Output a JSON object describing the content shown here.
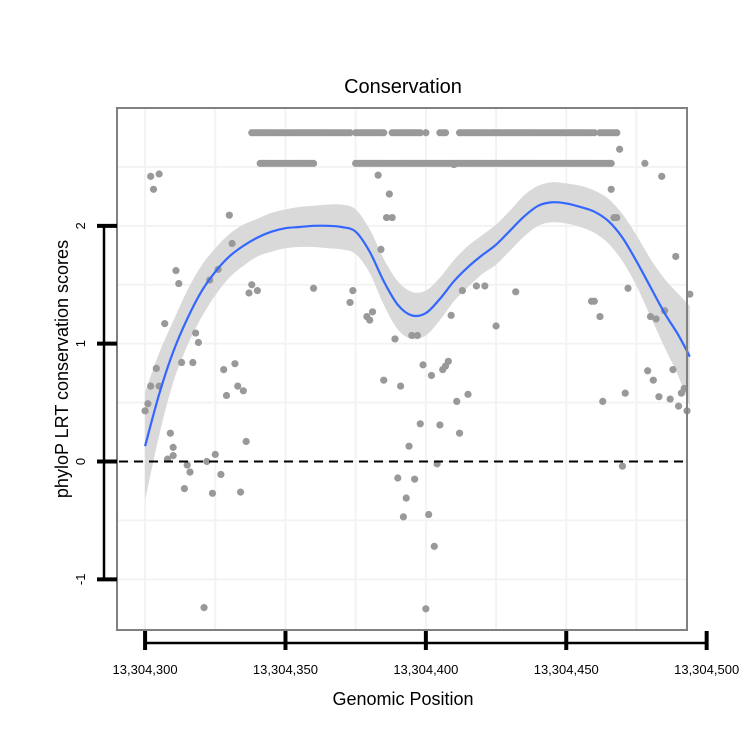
{
  "chart_data": {
    "type": "scatter",
    "title": "Conservation",
    "xlabel": "Genomic Position",
    "ylabel": "phyloP LRT conservation scores",
    "xlim": [
      13304290,
      13304493
    ],
    "ylim": [
      -1.43,
      3.0
    ],
    "x_ticks": [
      13304300,
      13304350,
      13304400,
      13304450,
      13304500
    ],
    "x_tick_labels": [
      "13,304,300",
      "13,304,350",
      "13,304,400",
      "13,304,450",
      "13,304,500"
    ],
    "y_ticks": [
      -1,
      0,
      1,
      2
    ],
    "y_tick_labels": [
      "-1",
      "0",
      "1",
      "2"
    ],
    "reference_line": {
      "y": 0,
      "style": "dashed"
    },
    "grid": true,
    "colors": {
      "points": "#999999",
      "smooth": "#3366FF",
      "ribbon": "#D9D9D9",
      "panel_border": "#808080",
      "grid": "#F3F3F3"
    },
    "points": [
      {
        "x": 13304302,
        "y": 2.42
      },
      {
        "x": 13304303,
        "y": 2.31
      },
      {
        "x": 13304305,
        "y": 2.44
      },
      {
        "x": 13304300,
        "y": 0.43
      },
      {
        "x": 13304301,
        "y": 0.49
      },
      {
        "x": 13304302,
        "y": 0.64
      },
      {
        "x": 13304304,
        "y": 0.79
      },
      {
        "x": 13304305,
        "y": 0.64
      },
      {
        "x": 13304307,
        "y": 1.17
      },
      {
        "x": 13304308,
        "y": 0.02
      },
      {
        "x": 13304309,
        "y": 0.24
      },
      {
        "x": 13304310,
        "y": 0.05
      },
      {
        "x": 13304310,
        "y": 0.12
      },
      {
        "x": 13304311,
        "y": 1.62
      },
      {
        "x": 13304312,
        "y": 1.51
      },
      {
        "x": 13304313,
        "y": 0.84
      },
      {
        "x": 13304314,
        "y": -0.23
      },
      {
        "x": 13304315,
        "y": -0.03
      },
      {
        "x": 13304316,
        "y": -0.09
      },
      {
        "x": 13304317,
        "y": 0.84
      },
      {
        "x": 13304318,
        "y": 1.09
      },
      {
        "x": 13304319,
        "y": 1.01
      },
      {
        "x": 13304321,
        "y": -1.24
      },
      {
        "x": 13304322,
        "y": 0.0
      },
      {
        "x": 13304323,
        "y": 1.54
      },
      {
        "x": 13304324,
        "y": -0.27
      },
      {
        "x": 13304325,
        "y": 0.06
      },
      {
        "x": 13304326,
        "y": 1.63
      },
      {
        "x": 13304327,
        "y": -0.11
      },
      {
        "x": 13304328,
        "y": 0.78
      },
      {
        "x": 13304329,
        "y": 0.56
      },
      {
        "x": 13304330,
        "y": 2.09
      },
      {
        "x": 13304331,
        "y": 1.85
      },
      {
        "x": 13304332,
        "y": 0.83
      },
      {
        "x": 13304333,
        "y": 0.64
      },
      {
        "x": 13304334,
        "y": -0.26
      },
      {
        "x": 13304335,
        "y": 0.6
      },
      {
        "x": 13304336,
        "y": 0.17
      },
      {
        "x": 13304337,
        "y": 1.43
      },
      {
        "x": 13304338,
        "y": 1.5
      },
      {
        "x": 13304340,
        "y": 1.45
      },
      {
        "x": 13304360,
        "y": 1.47
      },
      {
        "x": 13304373,
        "y": 1.35
      },
      {
        "x": 13304374,
        "y": 1.45
      },
      {
        "x": 13304379,
        "y": 1.23
      },
      {
        "x": 13304380,
        "y": 1.2
      },
      {
        "x": 13304381,
        "y": 1.27
      },
      {
        "x": 13304383,
        "y": 2.43
      },
      {
        "x": 13304384,
        "y": 1.8
      },
      {
        "x": 13304385,
        "y": 0.69
      },
      {
        "x": 13304386,
        "y": 2.07
      },
      {
        "x": 13304387,
        "y": 2.27
      },
      {
        "x": 13304388,
        "y": 2.07
      },
      {
        "x": 13304389,
        "y": 1.04
      },
      {
        "x": 13304390,
        "y": -0.14
      },
      {
        "x": 13304391,
        "y": 0.64
      },
      {
        "x": 13304392,
        "y": -0.47
      },
      {
        "x": 13304393,
        "y": -0.31
      },
      {
        "x": 13304394,
        "y": 0.13
      },
      {
        "x": 13304395,
        "y": 1.07
      },
      {
        "x": 13304396,
        "y": -0.15
      },
      {
        "x": 13304397,
        "y": 1.07
      },
      {
        "x": 13304398,
        "y": 0.32
      },
      {
        "x": 13304399,
        "y": 0.82
      },
      {
        "x": 13304400,
        "y": -1.25
      },
      {
        "x": 13304401,
        "y": -0.45
      },
      {
        "x": 13304402,
        "y": 0.73
      },
      {
        "x": 13304403,
        "y": -0.72
      },
      {
        "x": 13304404,
        "y": -0.02
      },
      {
        "x": 13304405,
        "y": 0.31
      },
      {
        "x": 13304406,
        "y": 0.78
      },
      {
        "x": 13304407,
        "y": 0.81
      },
      {
        "x": 13304408,
        "y": 0.85
      },
      {
        "x": 13304409,
        "y": 1.24
      },
      {
        "x": 13304410,
        "y": 2.52
      },
      {
        "x": 13304411,
        "y": 0.51
      },
      {
        "x": 13304412,
        "y": 0.24
      },
      {
        "x": 13304413,
        "y": 1.45
      },
      {
        "x": 13304415,
        "y": 0.57
      },
      {
        "x": 13304418,
        "y": 1.49
      },
      {
        "x": 13304421,
        "y": 1.49
      },
      {
        "x": 13304425,
        "y": 1.15
      },
      {
        "x": 13304432,
        "y": 1.44
      },
      {
        "x": 13304459,
        "y": 1.36
      },
      {
        "x": 13304460,
        "y": 1.36
      },
      {
        "x": 13304462,
        "y": 1.23
      },
      {
        "x": 13304463,
        "y": 0.51
      },
      {
        "x": 13304466,
        "y": 2.31
      },
      {
        "x": 13304467,
        "y": 2.07
      },
      {
        "x": 13304468,
        "y": 2.07
      },
      {
        "x": 13304469,
        "y": 2.65
      },
      {
        "x": 13304470,
        "y": -0.04
      },
      {
        "x": 13304471,
        "y": 0.58
      },
      {
        "x": 13304472,
        "y": 1.47
      },
      {
        "x": 13304478,
        "y": 2.53
      },
      {
        "x": 13304479,
        "y": 0.77
      },
      {
        "x": 13304480,
        "y": 1.23
      },
      {
        "x": 13304481,
        "y": 0.69
      },
      {
        "x": 13304482,
        "y": 1.21
      },
      {
        "x": 13304483,
        "y": 0.55
      },
      {
        "x": 13304484,
        "y": 2.42
      },
      {
        "x": 13304485,
        "y": 1.28
      },
      {
        "x": 13304487,
        "y": 0.53
      },
      {
        "x": 13304488,
        "y": 0.78
      },
      {
        "x": 13304489,
        "y": 1.74
      },
      {
        "x": 13304490,
        "y": 0.47
      },
      {
        "x": 13304491,
        "y": 0.58
      },
      {
        "x": 13304492,
        "y": 0.62
      },
      {
        "x": 13304493,
        "y": 0.43
      },
      {
        "x": 13304494,
        "y": 1.42
      }
    ],
    "upper_band_y": 2.79,
    "upper_band_x": [
      13304338,
      13304339,
      13304340,
      13304341,
      13304342,
      13304343,
      13304344,
      13304345,
      13304346,
      13304347,
      13304348,
      13304349,
      13304350,
      13304351,
      13304352,
      13304353,
      13304354,
      13304355,
      13304356,
      13304357,
      13304358,
      13304359,
      13304360,
      13304361,
      13304362,
      13304363,
      13304364,
      13304365,
      13304366,
      13304367,
      13304368,
      13304369,
      13304370,
      13304371,
      13304372,
      13304373,
      13304375,
      13304376,
      13304377,
      13304378,
      13304379,
      13304380,
      13304381,
      13304382,
      13304383,
      13304384,
      13304385,
      13304388,
      13304389,
      13304390,
      13304391,
      13304392,
      13304393,
      13304394,
      13304395,
      13304396,
      13304397,
      13304398,
      13304400,
      13304405,
      13304406,
      13304407,
      13304412,
      13304413,
      13304414,
      13304415,
      13304416,
      13304417,
      13304418,
      13304419,
      13304420,
      13304421,
      13304422,
      13304423,
      13304424,
      13304425,
      13304426,
      13304427,
      13304428,
      13304429,
      13304430,
      13304431,
      13304432,
      13304433,
      13304434,
      13304435,
      13304436,
      13304437,
      13304438,
      13304439,
      13304440,
      13304441,
      13304442,
      13304443,
      13304444,
      13304445,
      13304446,
      13304447,
      13304448,
      13304449,
      13304450,
      13304451,
      13304452,
      13304453,
      13304454,
      13304455,
      13304456,
      13304457,
      13304458,
      13304459,
      13304460,
      13304462,
      13304463,
      13304464,
      13304465,
      13304466,
      13304467,
      13304468
    ],
    "lower_band_y": 2.53,
    "lower_band_x": [
      13304341,
      13304342,
      13304343,
      13304344,
      13304345,
      13304346,
      13304347,
      13304348,
      13304349,
      13304350,
      13304351,
      13304352,
      13304353,
      13304354,
      13304355,
      13304356,
      13304357,
      13304358,
      13304359,
      13304360,
      13304375,
      13304376,
      13304377,
      13304378,
      13304379,
      13304380,
      13304381,
      13304382,
      13304383,
      13304384,
      13304385,
      13304386,
      13304387,
      13304388,
      13304389,
      13304390,
      13304391,
      13304392,
      13304393,
      13304394,
      13304395,
      13304396,
      13304397,
      13304398,
      13304399,
      13304400,
      13304401,
      13304402,
      13304403,
      13304404,
      13304405,
      13304406,
      13304407,
      13304408,
      13304409,
      13304410,
      13304411,
      13304412,
      13304413,
      13304414,
      13304415,
      13304416,
      13304417,
      13304418,
      13304419,
      13304420,
      13304421,
      13304422,
      13304423,
      13304424,
      13304425,
      13304426,
      13304427,
      13304428,
      13304429,
      13304430,
      13304431,
      13304432,
      13304433,
      13304434,
      13304435,
      13304436,
      13304437,
      13304438,
      13304439,
      13304440,
      13304441,
      13304442,
      13304443,
      13304444,
      13304445,
      13304446,
      13304447,
      13304448,
      13304449,
      13304450,
      13304451,
      13304452,
      13304453,
      13304454,
      13304455,
      13304456,
      13304457,
      13304458,
      13304459,
      13304460,
      13304461,
      13304462,
      13304463,
      13304464,
      13304465,
      13304466
    ],
    "smooth": [
      {
        "x": 13304300,
        "y": 0.13,
        "lo": -0.33,
        "hi": 0.59
      },
      {
        "x": 13304305,
        "y": 0.57,
        "lo": 0.22,
        "hi": 0.92
      },
      {
        "x": 13304310,
        "y": 0.93,
        "lo": 0.67,
        "hi": 1.19
      },
      {
        "x": 13304315,
        "y": 1.21,
        "lo": 0.98,
        "hi": 1.45
      },
      {
        "x": 13304320,
        "y": 1.44,
        "lo": 1.22,
        "hi": 1.66
      },
      {
        "x": 13304325,
        "y": 1.61,
        "lo": 1.41,
        "hi": 1.81
      },
      {
        "x": 13304330,
        "y": 1.74,
        "lo": 1.56,
        "hi": 1.93
      },
      {
        "x": 13304335,
        "y": 1.83,
        "lo": 1.66,
        "hi": 2.01
      },
      {
        "x": 13304340,
        "y": 1.9,
        "lo": 1.74,
        "hi": 2.06
      },
      {
        "x": 13304345,
        "y": 1.95,
        "lo": 1.78,
        "hi": 2.11
      },
      {
        "x": 13304350,
        "y": 1.98,
        "lo": 1.81,
        "hi": 2.14
      },
      {
        "x": 13304355,
        "y": 1.99,
        "lo": 1.82,
        "hi": 2.16
      },
      {
        "x": 13304360,
        "y": 2.0,
        "lo": 1.82,
        "hi": 2.17
      },
      {
        "x": 13304365,
        "y": 2.0,
        "lo": 1.81,
        "hi": 2.18
      },
      {
        "x": 13304370,
        "y": 1.99,
        "lo": 1.8,
        "hi": 2.18
      },
      {
        "x": 13304375,
        "y": 1.95,
        "lo": 1.76,
        "hi": 2.14
      },
      {
        "x": 13304380,
        "y": 1.78,
        "lo": 1.6,
        "hi": 1.97
      },
      {
        "x": 13304385,
        "y": 1.53,
        "lo": 1.33,
        "hi": 1.72
      },
      {
        "x": 13304390,
        "y": 1.33,
        "lo": 1.12,
        "hi": 1.53
      },
      {
        "x": 13304395,
        "y": 1.24,
        "lo": 1.04,
        "hi": 1.44
      },
      {
        "x": 13304400,
        "y": 1.26,
        "lo": 1.07,
        "hi": 1.45
      },
      {
        "x": 13304405,
        "y": 1.38,
        "lo": 1.2,
        "hi": 1.56
      },
      {
        "x": 13304410,
        "y": 1.53,
        "lo": 1.36,
        "hi": 1.71
      },
      {
        "x": 13304415,
        "y": 1.65,
        "lo": 1.48,
        "hi": 1.83
      },
      {
        "x": 13304420,
        "y": 1.75,
        "lo": 1.59,
        "hi": 1.92
      },
      {
        "x": 13304425,
        "y": 1.84,
        "lo": 1.67,
        "hi": 2.01
      },
      {
        "x": 13304430,
        "y": 1.96,
        "lo": 1.79,
        "hi": 2.13
      },
      {
        "x": 13304435,
        "y": 2.08,
        "lo": 1.91,
        "hi": 2.26
      },
      {
        "x": 13304440,
        "y": 2.17,
        "lo": 2.0,
        "hi": 2.34
      },
      {
        "x": 13304445,
        "y": 2.2,
        "lo": 2.03,
        "hi": 2.37
      },
      {
        "x": 13304450,
        "y": 2.19,
        "lo": 2.02,
        "hi": 2.36
      },
      {
        "x": 13304455,
        "y": 2.16,
        "lo": 1.99,
        "hi": 2.34
      },
      {
        "x": 13304460,
        "y": 2.12,
        "lo": 1.94,
        "hi": 2.3
      },
      {
        "x": 13304465,
        "y": 2.04,
        "lo": 1.85,
        "hi": 2.23
      },
      {
        "x": 13304470,
        "y": 1.9,
        "lo": 1.7,
        "hi": 2.1
      },
      {
        "x": 13304475,
        "y": 1.7,
        "lo": 1.49,
        "hi": 1.92
      },
      {
        "x": 13304480,
        "y": 1.48,
        "lo": 1.23,
        "hi": 1.72
      },
      {
        "x": 13304485,
        "y": 1.26,
        "lo": 0.97,
        "hi": 1.55
      },
      {
        "x": 13304490,
        "y": 1.07,
        "lo": 0.72,
        "hi": 1.42
      },
      {
        "x": 13304494,
        "y": 0.89,
        "lo": 0.46,
        "hi": 1.32
      }
    ]
  }
}
